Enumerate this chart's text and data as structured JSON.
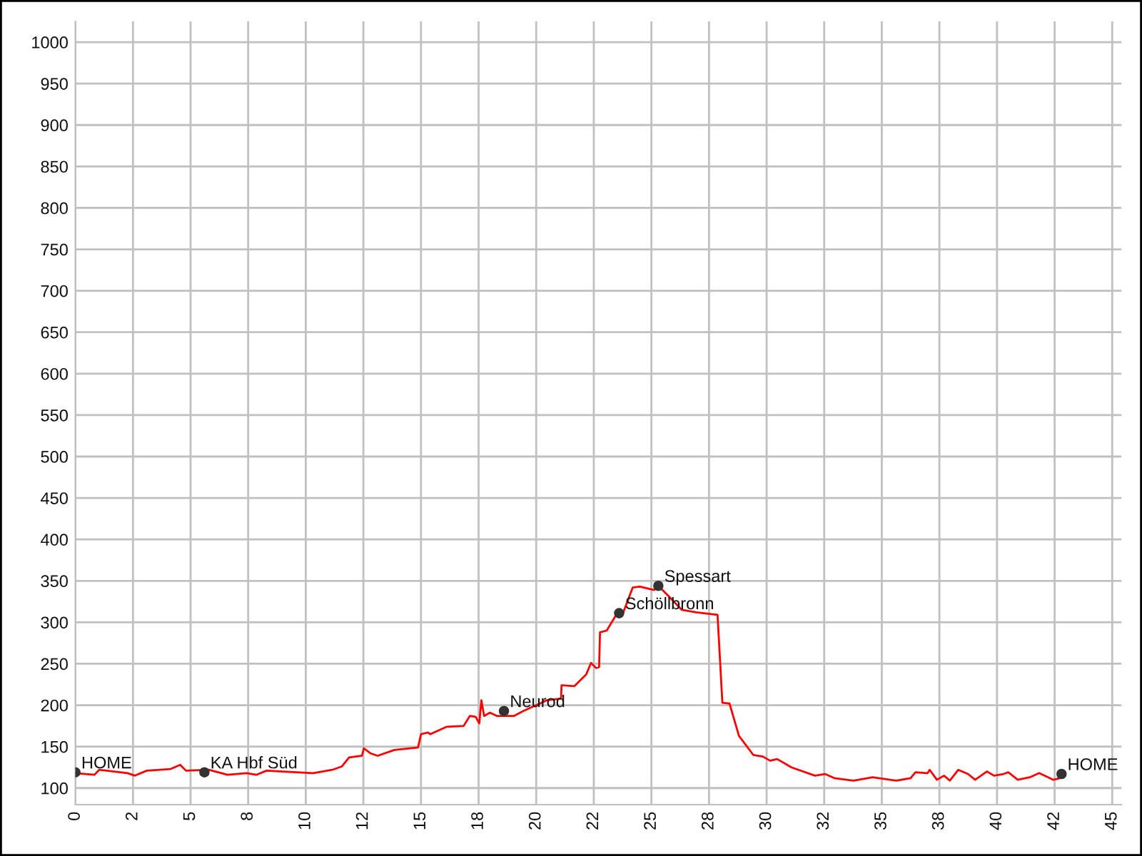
{
  "chart_data": {
    "type": "line",
    "series": [
      {
        "color": "#ff0000",
        "x": [
          0,
          0.83,
          1.03,
          2.27,
          2.58,
          3.1,
          4.13,
          4.55,
          4.8,
          5.79,
          6.6,
          7.44,
          7.85,
          8.3,
          10.32,
          11.15,
          11.56,
          11.88,
          12.44,
          12.52,
          12.8,
          13.12,
          13.84,
          14.87,
          15,
          15.3,
          15.4,
          16.12,
          16.85,
          17.12,
          17.37,
          17.53,
          17.62,
          17.74,
          17.99,
          18.3,
          19.03,
          19.44,
          20.47,
          21.08,
          21.1,
          21.66,
          22.17,
          22.38,
          22.59,
          22.73,
          22.77,
          23.06,
          23.47,
          23.78,
          24.19,
          24.5,
          25.12,
          25.3,
          25.8,
          26.32,
          26.94,
          27.87,
          28.08,
          28.39,
          28.8,
          29.42,
          29.84,
          30.15,
          30.46,
          31.08,
          32.1,
          32.53,
          32.94,
          33.77,
          34.6,
          35.63,
          36.25,
          36.46,
          36.98,
          37.08,
          37.39,
          37.7,
          37.95,
          38.32,
          38.74,
          39.05,
          39.56,
          39.87,
          40.28,
          40.49,
          40.9,
          41.42,
          41.83,
          42.45,
          42.87
        ],
        "values": [
          118,
          116,
          122,
          118,
          115,
          121,
          123,
          128,
          121,
          122,
          116,
          118,
          116,
          121,
          118,
          122,
          126,
          137,
          139,
          148,
          142,
          139,
          146,
          149,
          165,
          167,
          165,
          174,
          175,
          187,
          186,
          178,
          206,
          187,
          191,
          187,
          187,
          193,
          206,
          208,
          224,
          223,
          237,
          251,
          245,
          246,
          288,
          290,
          309,
          312,
          342,
          343,
          339,
          344,
          330,
          315,
          312,
          309,
          203,
          202,
          163,
          140,
          138,
          133,
          135,
          125,
          115,
          117,
          112,
          109,
          113,
          109,
          112,
          119,
          118,
          122,
          110,
          115,
          109,
          122,
          117,
          110,
          120,
          115,
          117,
          119,
          110,
          113,
          118,
          110,
          113
        ]
      },
      {
        "type": "scatter",
        "color": "#333333",
        "marker": "circle",
        "x": [
          0,
          5.6,
          18.6,
          23.6,
          25.3,
          42.8
        ],
        "values": [
          119,
          119,
          193,
          311,
          344,
          117
        ]
      }
    ],
    "annotations": [
      {
        "text": "HOME",
        "x": 0,
        "y": 119
      },
      {
        "text": "KA Hbf Süd",
        "x": 5.6,
        "y": 119
      },
      {
        "text": "Neurod",
        "x": 18.6,
        "y": 193
      },
      {
        "text": "Schöllbronn",
        "x": 23.6,
        "y": 311
      },
      {
        "text": "Spessart",
        "x": 25.3,
        "y": 344
      },
      {
        "text": "HOME",
        "x": 42.8,
        "y": 117
      }
    ],
    "xlim": [
      0,
      45.4
    ],
    "ylim": [
      80,
      1025
    ],
    "xticks": [
      0,
      {
        "value": 2.5,
        "label": "2"
      },
      5,
      {
        "value": 7.5,
        "label": "8"
      },
      10,
      {
        "value": 12.5,
        "label": "12"
      },
      15,
      {
        "value": 17.5,
        "label": "18"
      },
      20,
      {
        "value": 22.5,
        "label": "22"
      },
      25,
      {
        "value": 27.5,
        "label": "28"
      },
      30,
      {
        "value": 32.5,
        "label": "32"
      },
      35,
      {
        "value": 37.5,
        "label": "38"
      },
      40,
      {
        "value": 42.5,
        "label": "42"
      },
      45
    ],
    "yticks": [
      100,
      150,
      200,
      250,
      300,
      350,
      400,
      450,
      500,
      550,
      600,
      650,
      700,
      750,
      800,
      850,
      900,
      950,
      1000
    ],
    "grid": true,
    "legend": false
  }
}
